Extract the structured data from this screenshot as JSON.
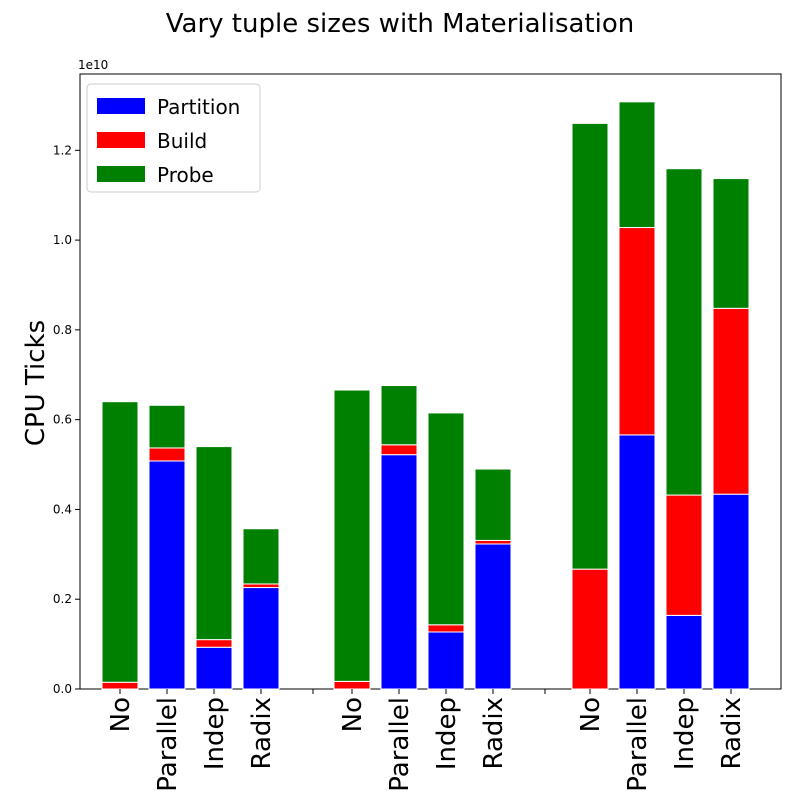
{
  "chart_data": {
    "type": "bar",
    "stacked": true,
    "title": "Vary tuple sizes with Materialisation",
    "ylabel": "CPU Ticks",
    "xlabel": "",
    "y_offset_label": "1e10",
    "y_scale_factor": 10000000000.0,
    "ylim": [
      0,
      13700000000.0
    ],
    "yticks": [
      0,
      2000000000.0,
      4000000000.0,
      6000000000.0,
      8000000000.0,
      10000000000.0,
      12000000000.0
    ],
    "ytick_labels": [
      "0.0",
      "0.2",
      "0.4",
      "0.6",
      "0.8",
      "1.0",
      "1.2"
    ],
    "legend_position": "upper-left",
    "colors": {
      "Partition": "#0000ff",
      "Build": "#ff0000",
      "Probe": "#008000"
    },
    "groups": [
      {
        "categories": [
          "No",
          "Parallel",
          "Indep",
          "Radix"
        ]
      },
      {
        "categories": [
          "No",
          "Parallel",
          "Indep",
          "Radix"
        ]
      },
      {
        "categories": [
          "No",
          "Parallel",
          "Indep",
          "Radix"
        ]
      }
    ],
    "series": [
      {
        "name": "Partition",
        "values": [
          0,
          5080000000.0,
          930000000.0,
          2260000000.0,
          0,
          5220000000.0,
          1270000000.0,
          3230000000.0,
          0,
          5660000000.0,
          1640000000.0,
          4340000000.0
        ]
      },
      {
        "name": "Build",
        "values": [
          150000000.0,
          290000000.0,
          170000000.0,
          80000000.0,
          170000000.0,
          220000000.0,
          160000000.0,
          80000000.0,
          2670000000.0,
          4620000000.0,
          2680000000.0,
          4140000000.0
        ]
      },
      {
        "name": "Probe",
        "values": [
          6250000000.0,
          950000000.0,
          4300000000.0,
          1230000000.0,
          6490000000.0,
          1320000000.0,
          4720000000.0,
          1590000000.0,
          9930000000.0,
          2800000000.0,
          7270000000.0,
          2890000000.0
        ]
      }
    ]
  }
}
